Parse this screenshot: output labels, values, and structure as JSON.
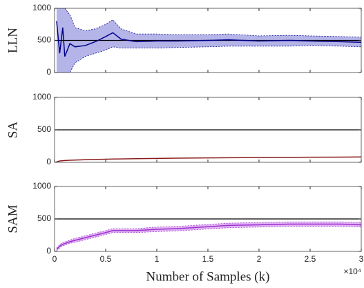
{
  "chart_data": [
    {
      "type": "band-line",
      "ylabel": "LLN",
      "ylim": [
        0,
        1000
      ],
      "yticks": [
        0,
        500,
        1000
      ],
      "xlim": [
        0,
        3
      ],
      "reference": 500,
      "x": [
        0.02,
        0.05,
        0.08,
        0.1,
        0.15,
        0.2,
        0.3,
        0.4,
        0.5,
        0.57,
        0.65,
        0.8,
        1.0,
        1.2,
        1.5,
        1.7,
        2.0,
        2.3,
        2.5,
        2.8,
        3.0
      ],
      "series": [
        {
          "color": "#00008b",
          "band_color": "#b4b4e8",
          "values": [
            800,
            300,
            700,
            250,
            450,
            400,
            420,
            480,
            560,
            620,
            520,
            480,
            490,
            490,
            500,
            510,
            490,
            500,
            490,
            480,
            470
          ],
          "lower": [
            0,
            0,
            0,
            0,
            0,
            150,
            250,
            300,
            350,
            400,
            380,
            380,
            380,
            390,
            400,
            410,
            410,
            410,
            420,
            410,
            400
          ],
          "upper": [
            1000,
            1000,
            1000,
            1000,
            900,
            700,
            650,
            680,
            750,
            820,
            680,
            600,
            600,
            590,
            590,
            600,
            570,
            580,
            570,
            560,
            550
          ]
        }
      ]
    },
    {
      "type": "band-line",
      "ylabel": "SA",
      "ylim": [
        0,
        1000
      ],
      "yticks": [
        0,
        500,
        1000
      ],
      "xlim": [
        0,
        3
      ],
      "reference": 500,
      "x": [
        0.02,
        0.05,
        0.08,
        0.1,
        0.15,
        0.2,
        0.3,
        0.4,
        0.5,
        0.57,
        0.65,
        0.8,
        1.0,
        1.2,
        1.5,
        1.7,
        2.0,
        2.3,
        2.5,
        2.8,
        3.0
      ],
      "series": [
        {
          "color": "#8b1a1a",
          "values": [
            10,
            20,
            25,
            28,
            32,
            35,
            40,
            44,
            48,
            50,
            52,
            56,
            60,
            64,
            68,
            70,
            73,
            76,
            78,
            80,
            82
          ]
        }
      ]
    },
    {
      "type": "band-line",
      "ylabel": "SAM",
      "ylim": [
        0,
        1000
      ],
      "yticks": [
        0,
        500,
        1000
      ],
      "xlim": [
        0,
        3
      ],
      "reference": 500,
      "xlabel": "Number of Samples (k)",
      "x_multiplier": "×10⁴",
      "xticks": [
        0,
        0.5,
        1,
        1.5,
        2,
        2.5,
        3
      ],
      "x": [
        0.02,
        0.05,
        0.08,
        0.1,
        0.15,
        0.2,
        0.3,
        0.4,
        0.5,
        0.57,
        0.65,
        0.8,
        1.0,
        1.2,
        1.5,
        1.7,
        2.0,
        2.3,
        2.5,
        2.8,
        3.0
      ],
      "series": [
        {
          "color": "#9b30d0",
          "band_color": "#e2b4f2",
          "values": [
            30,
            80,
            110,
            120,
            150,
            170,
            210,
            250,
            290,
            320,
            320,
            320,
            340,
            350,
            380,
            400,
            410,
            420,
            420,
            420,
            410
          ],
          "lower": [
            10,
            55,
            85,
            95,
            125,
            140,
            180,
            220,
            260,
            290,
            290,
            290,
            305,
            315,
            345,
            365,
            375,
            385,
            385,
            385,
            375
          ],
          "upper": [
            50,
            105,
            135,
            145,
            175,
            200,
            240,
            280,
            320,
            350,
            350,
            350,
            375,
            385,
            415,
            435,
            445,
            455,
            455,
            455,
            445
          ]
        }
      ]
    }
  ]
}
